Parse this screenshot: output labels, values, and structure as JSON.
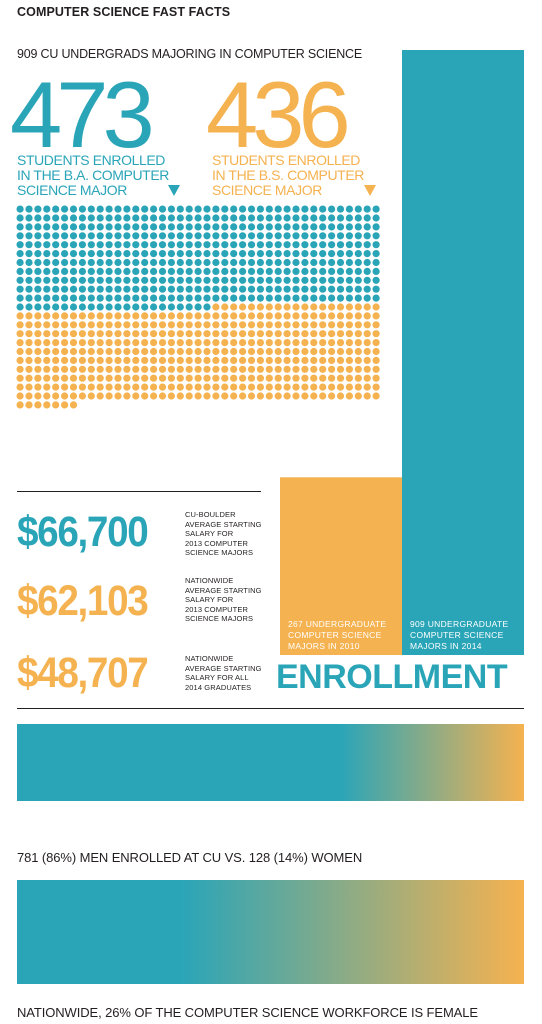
{
  "header": {
    "title": "COMPUTER SCIENCE FAST FACTS",
    "subtitle": "909 CU UNDERGRADS MAJORING IN COMPUTER SCIENCE"
  },
  "colors": {
    "teal": "#2aa5b8",
    "orange": "#f5b250",
    "text": "#231f20"
  },
  "majors": {
    "ba": {
      "count": "473",
      "caption_lines": [
        "STUDENTS ENROLLED",
        "IN THE B.A. COMPUTER",
        "SCIENCE MAJOR"
      ]
    },
    "bs": {
      "count": "436",
      "caption_lines": [
        "STUDENTS ENROLLED",
        "IN THE B.S. COMPUTER",
        "SCIENCE MAJOR"
      ]
    }
  },
  "salaries": [
    {
      "amount": "$66,700",
      "color": "teal",
      "desc_lines": [
        "CU-BOULDER",
        "AVERAGE STARTING",
        "SALARY FOR",
        "2013 COMPUTER",
        "SCIENCE MAJORS"
      ]
    },
    {
      "amount": "$62,103",
      "color": "orange",
      "desc_lines": [
        "NATIONWIDE",
        "AVERAGE STARTING",
        "SALARY FOR",
        "2013 COMPUTER",
        "SCIENCE MAJORS"
      ]
    },
    {
      "amount": "$48,707",
      "color": "orange",
      "desc_lines": [
        "NATIONWIDE",
        "AVERAGE STARTING",
        "SALARY FOR ALL",
        "2014 GRADUATES"
      ]
    }
  ],
  "enrollment": {
    "title": "ENROLLMENT",
    "label_2010_lines": [
      "267 UNDERGRADUATE",
      "COMPUTER SCIENCE",
      "MAJORS IN 2010"
    ],
    "label_2014_lines": [
      "909 UNDERGRADUATE",
      "COMPUTER SCIENCE",
      "MAJORS IN 2014"
    ]
  },
  "gender": {
    "cu_text": "781 (86%) MEN ENROLLED AT CU VS. 128 (14%) WOMEN",
    "national_text": "NATIONWIDE, 26% OF THE COMPUTER SCIENCE WORKFORCE IS FEMALE"
  },
  "chart_data": [
    {
      "type": "waffle",
      "series": [
        {
          "name": "B.A.",
          "value": 473,
          "color": "#2aa5b8"
        },
        {
          "name": "B.S.",
          "value": 436,
          "color": "#f5b250"
        }
      ]
    },
    {
      "type": "bar",
      "categories": [
        "2010",
        "2014"
      ],
      "values": [
        267,
        909
      ],
      "colors": [
        "#f5b250",
        "#2aa5b8"
      ]
    },
    {
      "type": "bar",
      "orientation": "horizontal",
      "stacked": true,
      "categories": [
        "CU enrollment by gender"
      ],
      "series": [
        {
          "name": "MEN",
          "value": 86,
          "color": "#2aa5b8"
        },
        {
          "name": "WOMEN",
          "value": 14,
          "color": "#f5b250"
        }
      ]
    },
    {
      "type": "bar",
      "orientation": "horizontal",
      "stacked": true,
      "categories": [
        "Nationwide CS workforce by gender"
      ],
      "series": [
        {
          "name": "male",
          "value": 74,
          "color": "#2aa5b8"
        },
        {
          "name": "FEMALE",
          "value": 26,
          "color": "#f5b250"
        }
      ]
    }
  ]
}
